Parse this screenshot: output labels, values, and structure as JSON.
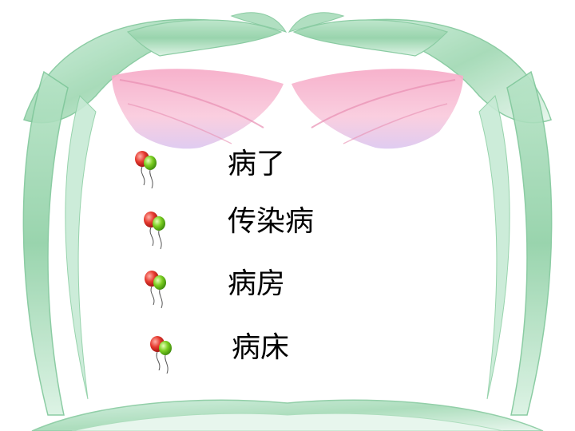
{
  "slide": {
    "words": [
      {
        "text": "病了"
      },
      {
        "text": "传染病"
      },
      {
        "text": "病房"
      },
      {
        "text": "病床"
      }
    ],
    "bullet_icon": "balloon-pair-icon",
    "colors": {
      "leaf_green": "#9fd8b2",
      "leaf_dark": "#6cbf8b",
      "petal_pink": "#f7b7cf",
      "petal_lavender": "#dcc6ef",
      "balloon_red": "#e02a2a",
      "balloon_green": "#6fc21e",
      "text": "#000000"
    }
  }
}
